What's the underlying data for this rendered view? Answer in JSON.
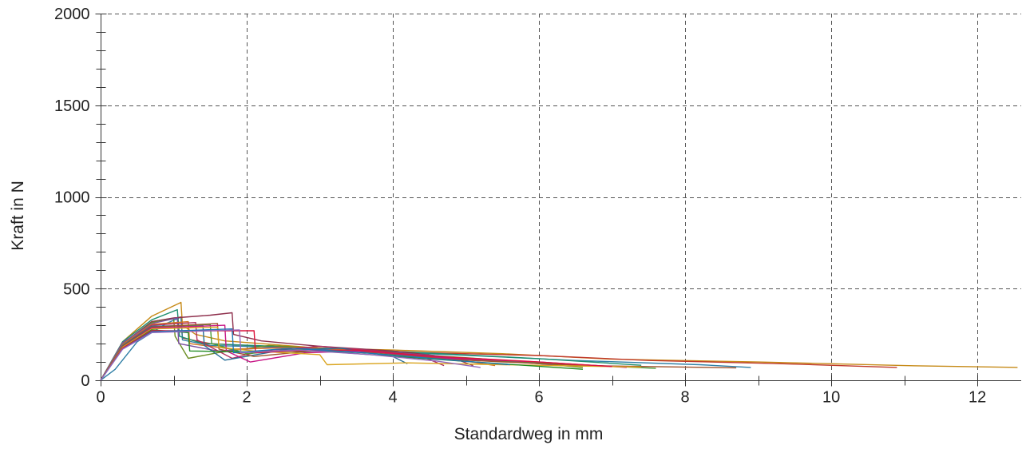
{
  "chart_data": {
    "type": "line",
    "xlabel": "Standardweg in mm",
    "ylabel": "Kraft in N",
    "xlim": [
      0,
      12.6
    ],
    "ylim": [
      0,
      2000
    ],
    "x_ticks": [
      0,
      2,
      4,
      6,
      8,
      10,
      12
    ],
    "y_ticks": [
      0,
      500,
      1000,
      1500,
      2000
    ],
    "grid": true,
    "legend": "none",
    "series": [
      {
        "color": "#c68a17",
        "points": [
          [
            0,
            0
          ],
          [
            0.3,
            210
          ],
          [
            0.7,
            350
          ],
          [
            1.1,
            425
          ],
          [
            1.12,
            300
          ],
          [
            1.3,
            250
          ],
          [
            1.7,
            215
          ],
          [
            2.2,
            200
          ],
          [
            3.0,
            175
          ],
          [
            4.0,
            165
          ],
          [
            5.5,
            145
          ],
          [
            7,
            115
          ],
          [
            9,
            100
          ],
          [
            11,
            80
          ],
          [
            12.55,
            70
          ]
        ]
      },
      {
        "color": "#c0392b",
        "points": [
          [
            0,
            0
          ],
          [
            0.3,
            200
          ],
          [
            0.7,
            320
          ],
          [
            1.1,
            345
          ],
          [
            1.12,
            230
          ],
          [
            1.5,
            200
          ],
          [
            2.5,
            180
          ],
          [
            3.5,
            165
          ],
          [
            4.5,
            150
          ],
          [
            6,
            135
          ],
          [
            7.5,
            108
          ],
          [
            9.2,
            92
          ],
          [
            10.9,
            70
          ]
        ]
      },
      {
        "color": "#2f7fa6",
        "points": [
          [
            0,
            0
          ],
          [
            0.2,
            60
          ],
          [
            0.5,
            210
          ],
          [
            0.9,
            310
          ],
          [
            1.1,
            345
          ],
          [
            1.12,
            220
          ],
          [
            1.5,
            190
          ],
          [
            2.5,
            180
          ],
          [
            3.5,
            160
          ],
          [
            4.8,
            140
          ],
          [
            6.5,
            108
          ],
          [
            8.2,
            85
          ],
          [
            8.9,
            70
          ]
        ]
      },
      {
        "color": "#1e8f6e",
        "points": [
          [
            0,
            0
          ],
          [
            0.3,
            210
          ],
          [
            0.7,
            330
          ],
          [
            1.05,
            385
          ],
          [
            1.08,
            240
          ],
          [
            1.4,
            200
          ],
          [
            2.4,
            185
          ],
          [
            3.4,
            170
          ],
          [
            4.5,
            148
          ],
          [
            6,
            118
          ],
          [
            7.4,
            82
          ]
        ]
      },
      {
        "color": "#8e2f4c",
        "points": [
          [
            0,
            0
          ],
          [
            0.3,
            200
          ],
          [
            0.7,
            320
          ],
          [
            1.0,
            340
          ],
          [
            1.5,
            355
          ],
          [
            1.8,
            368
          ],
          [
            1.82,
            250
          ],
          [
            2.2,
            215
          ],
          [
            3.0,
            185
          ],
          [
            4.0,
            160
          ],
          [
            4.8,
            125
          ],
          [
            5.1,
            80
          ]
        ]
      },
      {
        "color": "#6b8e23",
        "points": [
          [
            0,
            0
          ],
          [
            0.3,
            200
          ],
          [
            0.7,
            315
          ],
          [
            1.0,
            335
          ],
          [
            1.02,
            240
          ],
          [
            1.2,
            120
          ],
          [
            1.6,
            150
          ],
          [
            2.3,
            190
          ],
          [
            3.0,
            175
          ],
          [
            4.0,
            150
          ],
          [
            5.2,
            118
          ],
          [
            6.6,
            70
          ]
        ]
      },
      {
        "color": "#7b4fa0",
        "points": [
          [
            0,
            0
          ],
          [
            0.3,
            205
          ],
          [
            0.7,
            310
          ],
          [
            1.05,
            340
          ],
          [
            1.07,
            200
          ],
          [
            1.6,
            160
          ],
          [
            2.4,
            180
          ],
          [
            3.2,
            170
          ],
          [
            4.2,
            145
          ],
          [
            5.3,
            110
          ],
          [
            6.2,
            85
          ]
        ]
      },
      {
        "color": "#d4731f",
        "points": [
          [
            0,
            0
          ],
          [
            0.3,
            195
          ],
          [
            0.7,
            305
          ],
          [
            1.2,
            320
          ],
          [
            1.22,
            200
          ],
          [
            1.8,
            170
          ],
          [
            2.8,
            180
          ],
          [
            3.6,
            160
          ],
          [
            4.6,
            128
          ],
          [
            5.4,
            80
          ]
        ]
      },
      {
        "color": "#b03060",
        "points": [
          [
            0,
            0
          ],
          [
            0.3,
            190
          ],
          [
            0.7,
            300
          ],
          [
            1.3,
            315
          ],
          [
            1.32,
            220
          ],
          [
            1.8,
            120
          ],
          [
            2.2,
            160
          ],
          [
            3.0,
            185
          ],
          [
            3.8,
            160
          ],
          [
            4.4,
            130
          ],
          [
            4.7,
            80
          ]
        ]
      },
      {
        "color": "#2a6f97",
        "points": [
          [
            0,
            0
          ],
          [
            0.3,
            190
          ],
          [
            0.7,
            295
          ],
          [
            1.4,
            300
          ],
          [
            1.42,
            190
          ],
          [
            1.7,
            110
          ],
          [
            2.5,
            165
          ],
          [
            3.3,
            175
          ],
          [
            4.0,
            130
          ],
          [
            4.2,
            90
          ]
        ]
      },
      {
        "color": "#4a9b3c",
        "points": [
          [
            0,
            0
          ],
          [
            0.3,
            185
          ],
          [
            0.7,
            290
          ],
          [
            1.5,
            305
          ],
          [
            1.52,
            200
          ],
          [
            2.0,
            145
          ],
          [
            2.8,
            170
          ],
          [
            3.6,
            150
          ],
          [
            4.8,
            115
          ],
          [
            6.0,
            95
          ],
          [
            7.6,
            65
          ]
        ]
      },
      {
        "color": "#a0522d",
        "points": [
          [
            0,
            0
          ],
          [
            0.3,
            185
          ],
          [
            0.7,
            290
          ],
          [
            1.6,
            310
          ],
          [
            1.62,
            170
          ],
          [
            2.1,
            130
          ],
          [
            2.9,
            160
          ],
          [
            3.8,
            150
          ],
          [
            5.0,
            110
          ],
          [
            6.6,
            80
          ],
          [
            8.7,
            68
          ]
        ]
      },
      {
        "color": "#c71585",
        "points": [
          [
            0,
            0
          ],
          [
            0.3,
            180
          ],
          [
            0.7,
            285
          ],
          [
            1.7,
            300
          ],
          [
            1.72,
            160
          ],
          [
            2.05,
            100
          ],
          [
            2.8,
            150
          ],
          [
            3.6,
            160
          ],
          [
            4.8,
            120
          ],
          [
            6.0,
            100
          ],
          [
            7.2,
            70
          ]
        ]
      },
      {
        "color": "#daa520",
        "points": [
          [
            0,
            0
          ],
          [
            0.3,
            180
          ],
          [
            0.7,
            280
          ],
          [
            1.6,
            290
          ],
          [
            1.62,
            180
          ],
          [
            2.1,
            160
          ],
          [
            3.0,
            140
          ],
          [
            3.1,
            85
          ],
          [
            4.2,
            95
          ],
          [
            5.5,
            85
          ],
          [
            7.4,
            72
          ]
        ]
      },
      {
        "color": "#228b22",
        "points": [
          [
            0,
            0
          ],
          [
            0.3,
            175
          ],
          [
            0.7,
            275
          ],
          [
            1.2,
            260
          ],
          [
            1.22,
            160
          ],
          [
            2.0,
            155
          ],
          [
            3.0,
            160
          ],
          [
            4.2,
            125
          ],
          [
            5.3,
            95
          ],
          [
            6.6,
            60
          ]
        ]
      },
      {
        "color": "#dc143c",
        "points": [
          [
            0,
            0
          ],
          [
            0.3,
            175
          ],
          [
            0.7,
            270
          ],
          [
            2.1,
            270
          ],
          [
            2.12,
            150
          ],
          [
            2.6,
            160
          ],
          [
            3.5,
            165
          ],
          [
            4.6,
            130
          ],
          [
            5.8,
            105
          ],
          [
            7.0,
            75
          ]
        ]
      },
      {
        "color": "#1f77b4",
        "points": [
          [
            0,
            0
          ],
          [
            0.3,
            170
          ],
          [
            0.7,
            265
          ],
          [
            1.8,
            280
          ],
          [
            1.82,
            150
          ],
          [
            2.6,
            175
          ],
          [
            3.6,
            150
          ],
          [
            4.8,
            110
          ],
          [
            5.6,
            85
          ]
        ]
      },
      {
        "color": "#9467bd",
        "points": [
          [
            0,
            0
          ],
          [
            0.3,
            170
          ],
          [
            0.7,
            260
          ],
          [
            1.9,
            275
          ],
          [
            1.92,
            150
          ],
          [
            2.7,
            165
          ],
          [
            3.7,
            140
          ],
          [
            4.6,
            105
          ],
          [
            5.2,
            70
          ]
        ]
      }
    ]
  }
}
